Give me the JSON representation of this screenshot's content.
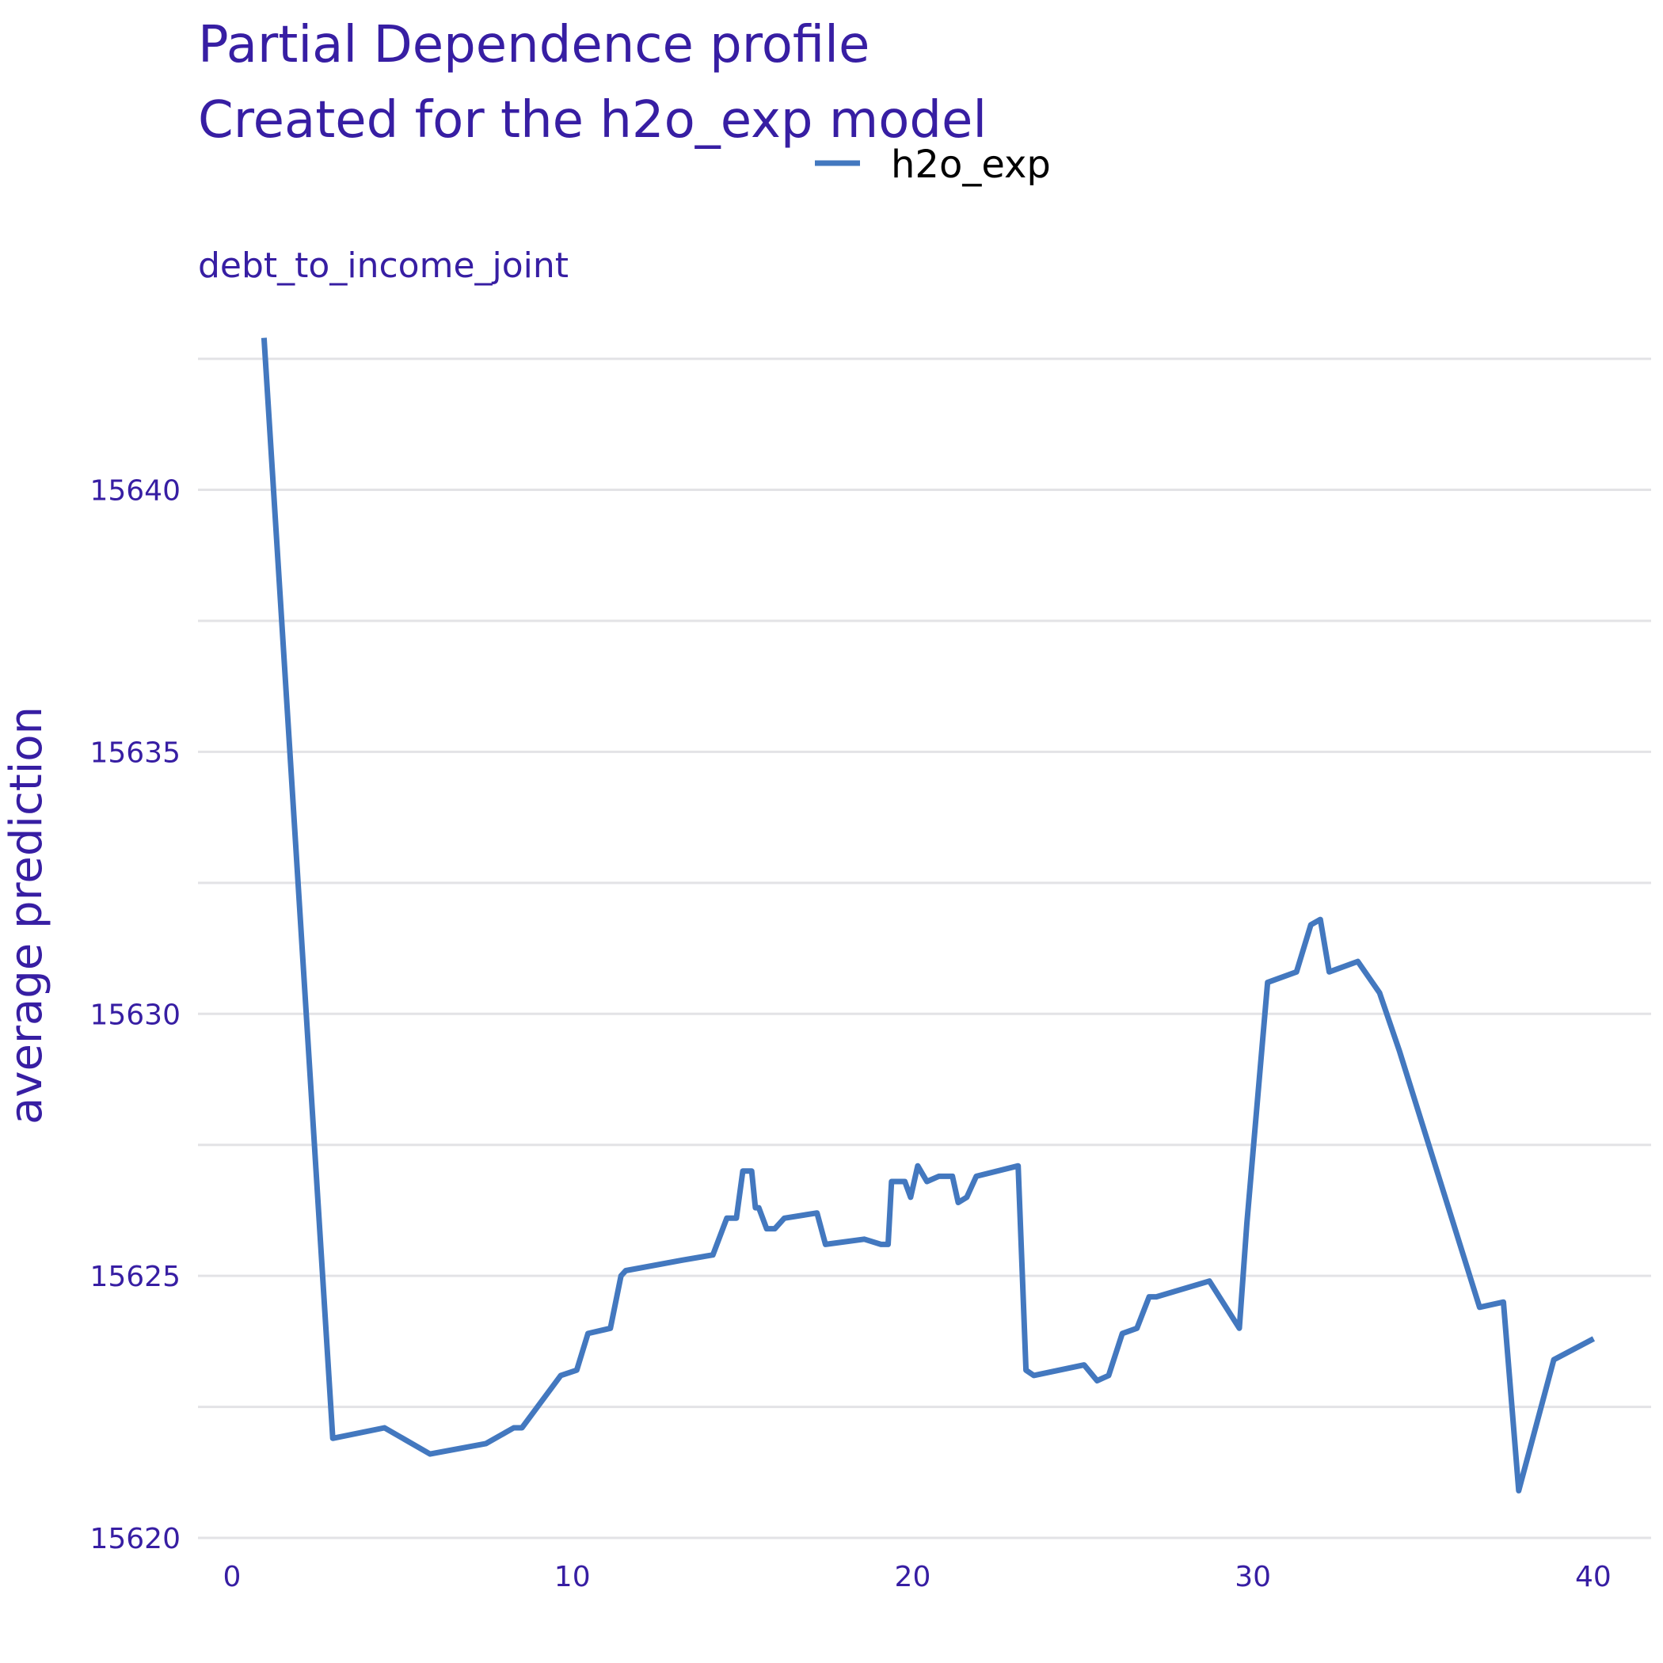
{
  "chart_data": {
    "type": "line",
    "title": "Partial Dependence profile",
    "subtitle": "Created for the h2o_exp model",
    "facet_label": "debt_to_income_joint",
    "xlabel": "",
    "ylabel": "average prediction",
    "xlim": [
      -1,
      41.7
    ],
    "ylim": [
      15620,
      15643
    ],
    "x_ticks": [
      0,
      10,
      20,
      30,
      40
    ],
    "x_tick_labels": [
      "0",
      "10",
      "20",
      "30",
      "40"
    ],
    "y_ticks": [
      15620,
      15625,
      15630,
      15635,
      15640
    ],
    "y_tick_labels": [
      "15620",
      "15625",
      "15630",
      "15635",
      "15640"
    ],
    "y_minor_gridlines": [
      15622.5,
      15627.5,
      15632.5,
      15637.5,
      15642.5
    ],
    "grid": true,
    "legend_position": "top",
    "colors": {
      "series": "#4378bf",
      "text": "#371ea3",
      "grid": "#e3e3e6"
    },
    "series": [
      {
        "name": "h2o_exp",
        "x": [
          0.94,
          2.96,
          4.48,
          5.82,
          7.46,
          8.28,
          8.52,
          9.66,
          10.13,
          10.46,
          11.12,
          11.43,
          11.57,
          13.23,
          14.13,
          14.54,
          14.82,
          15.01,
          15.27,
          15.38,
          15.48,
          15.71,
          15.95,
          16.23,
          17.19,
          17.44,
          18.58,
          19.07,
          19.28,
          19.38,
          19.77,
          19.94,
          20.15,
          20.42,
          20.77,
          21.17,
          21.34,
          21.59,
          21.87,
          23.1,
          23.33,
          23.56,
          25.04,
          25.42,
          25.76,
          26.16,
          26.59,
          26.95,
          27.16,
          28.72,
          29.6,
          29.82,
          30.43,
          31.28,
          31.7,
          31.98,
          32.24,
          33.08,
          33.72,
          34.3,
          36.66,
          37.36,
          37.81,
          38.84,
          40.01
        ],
        "values": [
          15642.9,
          15621.9,
          15622.1,
          15621.6,
          15621.8,
          15622.1,
          15622.1,
          15623.1,
          15623.2,
          15623.9,
          15624.0,
          15625.0,
          15625.1,
          15625.3,
          15625.4,
          15626.1,
          15626.1,
          15627.0,
          15627.0,
          15626.3,
          15626.3,
          15625.9,
          15625.9,
          15626.1,
          15626.2,
          15625.6,
          15625.7,
          15625.6,
          15625.6,
          15626.8,
          15626.8,
          15626.5,
          15627.1,
          15626.8,
          15626.9,
          15626.9,
          15626.4,
          15626.5,
          15626.9,
          15627.1,
          15623.2,
          15623.1,
          15623.3,
          15623.0,
          15623.1,
          15623.9,
          15624.0,
          15624.6,
          15624.6,
          15624.9,
          15624.0,
          15626.0,
          15630.6,
          15630.8,
          15631.7,
          15631.8,
          15630.8,
          15631.0,
          15630.4,
          15629.3,
          15624.4,
          15624.5,
          15620.9,
          15623.4,
          15623.8
        ]
      }
    ]
  }
}
